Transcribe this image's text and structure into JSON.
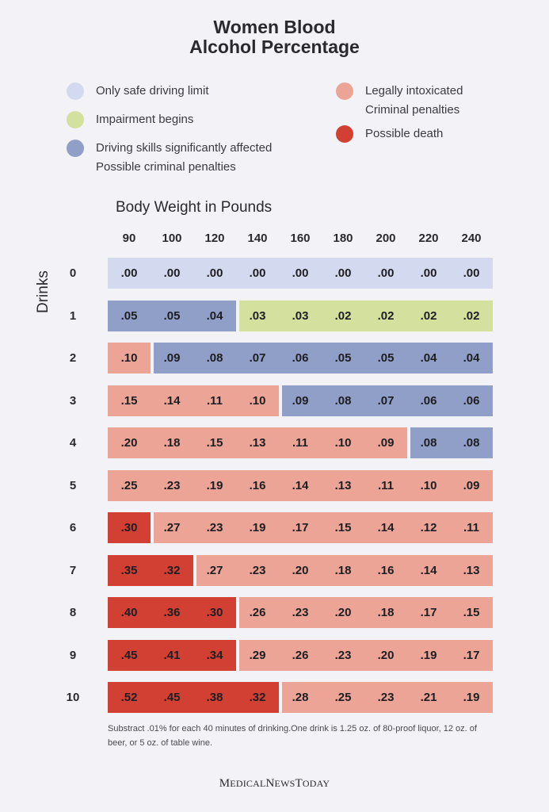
{
  "title": {
    "line1": "Women Blood",
    "line2": "Alcohol Percentage"
  },
  "legend": [
    {
      "key": "safe",
      "lines": [
        "Only safe driving limit"
      ],
      "color": "#d3d9ee"
    },
    {
      "key": "impair",
      "lines": [
        "Impairment begins"
      ],
      "color": "#d4e09e"
    },
    {
      "key": "skills",
      "lines": [
        "Driving skills significantly affected",
        "Possible criminal penalties"
      ],
      "color": "#8f9fc7"
    },
    {
      "key": "intox",
      "lines": [
        "Legally intoxicated",
        "Criminal penalties"
      ],
      "color": "#eba496"
    },
    {
      "key": "death",
      "lines": [
        "Possible death"
      ],
      "color": "#d23f33"
    }
  ],
  "chart_data": {
    "type": "table",
    "title": "Women Blood Alcohol Percentage",
    "xlabel": "Body Weight in Pounds",
    "ylabel": "Drinks",
    "columns": [
      "90",
      "100",
      "120",
      "140",
      "160",
      "180",
      "200",
      "220",
      "240"
    ],
    "rows": [
      "0",
      "1",
      "2",
      "3",
      "4",
      "5",
      "6",
      "7",
      "8",
      "9",
      "10"
    ],
    "values": [
      [
        ".00",
        ".00",
        ".00",
        ".00",
        ".00",
        ".00",
        ".00",
        ".00",
        ".00"
      ],
      [
        ".05",
        ".05",
        ".04",
        ".03",
        ".03",
        ".02",
        ".02",
        ".02",
        ".02"
      ],
      [
        ".10",
        ".09",
        ".08",
        ".07",
        ".06",
        ".05",
        ".05",
        ".04",
        ".04"
      ],
      [
        ".15",
        ".14",
        ".11",
        ".10",
        ".09",
        ".08",
        ".07",
        ".06",
        ".06"
      ],
      [
        ".20",
        ".18",
        ".15",
        ".13",
        ".11",
        ".10",
        ".09",
        ".08",
        ".08"
      ],
      [
        ".25",
        ".23",
        ".19",
        ".16",
        ".14",
        ".13",
        ".11",
        ".10",
        ".09"
      ],
      [
        ".30",
        ".27",
        ".23",
        ".19",
        ".17",
        ".15",
        ".14",
        ".12",
        ".11"
      ],
      [
        ".35",
        ".32",
        ".27",
        ".23",
        ".20",
        ".18",
        ".16",
        ".14",
        ".13"
      ],
      [
        ".40",
        ".36",
        ".30",
        ".26",
        ".23",
        ".20",
        ".18",
        ".17",
        ".15"
      ],
      [
        ".45",
        ".41",
        ".34",
        ".29",
        ".26",
        ".23",
        ".20",
        ".19",
        ".17"
      ],
      [
        ".52",
        ".45",
        ".38",
        ".32",
        ".28",
        ".25",
        ".23",
        ".21",
        ".19"
      ]
    ],
    "categories": [
      [
        "safe",
        "safe",
        "safe",
        "safe",
        "safe",
        "safe",
        "safe",
        "safe",
        "safe"
      ],
      [
        "skills",
        "skills",
        "skills",
        "impair",
        "impair",
        "impair",
        "impair",
        "impair",
        "impair"
      ],
      [
        "intox",
        "skills",
        "skills",
        "skills",
        "skills",
        "skills",
        "skills",
        "skills",
        "skills"
      ],
      [
        "intox",
        "intox",
        "intox",
        "intox",
        "skills",
        "skills",
        "skills",
        "skills",
        "skills"
      ],
      [
        "intox",
        "intox",
        "intox",
        "intox",
        "intox",
        "intox",
        "intox",
        "skills",
        "skills"
      ],
      [
        "intox",
        "intox",
        "intox",
        "intox",
        "intox",
        "intox",
        "intox",
        "intox",
        "intox"
      ],
      [
        "death",
        "intox",
        "intox",
        "intox",
        "intox",
        "intox",
        "intox",
        "intox",
        "intox"
      ],
      [
        "death",
        "death",
        "intox",
        "intox",
        "intox",
        "intox",
        "intox",
        "intox",
        "intox"
      ],
      [
        "death",
        "death",
        "death",
        "intox",
        "intox",
        "intox",
        "intox",
        "intox",
        "intox"
      ],
      [
        "death",
        "death",
        "death",
        "intox",
        "intox",
        "intox",
        "intox",
        "intox",
        "intox"
      ],
      [
        "death",
        "death",
        "death",
        "death",
        "intox",
        "intox",
        "intox",
        "intox",
        "intox"
      ]
    ]
  },
  "note": "Substract .01% for each 40 minutes of drinking.One drink is 1.25 oz. of 80-proof liquor, 12 oz. of beer, or 5 oz. of table wine.",
  "brand": "MedicalNewsToday"
}
